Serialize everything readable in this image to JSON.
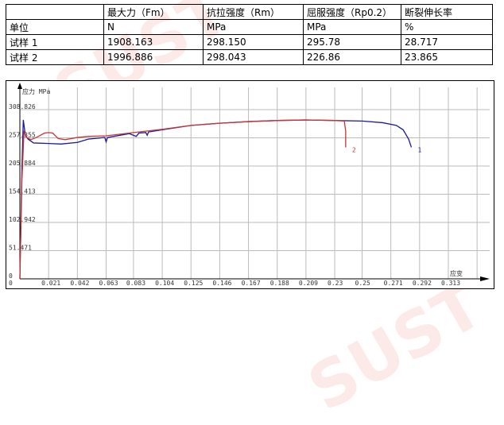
{
  "table": {
    "header": [
      "",
      "最大力（Fm）",
      "抗拉强度（Rm）",
      "屈服强度（Rp0.2）",
      "断裂伸长率"
    ],
    "rows": [
      [
        "单位",
        "N",
        "MPa",
        "MPa",
        "%"
      ],
      [
        "试样 1",
        "1908.163",
        "298.150",
        "295.78",
        "28.717"
      ],
      [
        "试样 2",
        "1996.886",
        "298.043",
        "226.86",
        "23.865"
      ]
    ]
  },
  "watermark": "SUST",
  "chart_data": {
    "type": "line",
    "ylabel": "应力 MPa",
    "xlabel": "应变",
    "ylim": [
      0,
      308.826
    ],
    "xlim": [
      0,
      0.33
    ],
    "grid": true,
    "y_ticks": [
      "0",
      "51.471",
      "102.942",
      "154.413",
      "205.884",
      "257.355",
      "308.826"
    ],
    "x_ticks": [
      "0",
      "0.021",
      "0.042",
      "0.063",
      "0.083",
      "0.104",
      "0.125",
      "0.146",
      "0.167",
      "0.188",
      "0.209",
      "0.23",
      "0.25",
      "0.271",
      "0.292",
      "0.313"
    ],
    "series": [
      {
        "name": "1",
        "color": "#1a1a9a",
        "points": [
          [
            0,
            0
          ],
          [
            0.0015,
            200
          ],
          [
            0.0025,
            290
          ],
          [
            0.004,
            262
          ],
          [
            0.006,
            255
          ],
          [
            0.01,
            248
          ],
          [
            0.021,
            247
          ],
          [
            0.03,
            246
          ],
          [
            0.042,
            249
          ],
          [
            0.05,
            255
          ],
          [
            0.062,
            258
          ],
          [
            0.063,
            250
          ],
          [
            0.064,
            258
          ],
          [
            0.08,
            265
          ],
          [
            0.085,
            260
          ],
          [
            0.087,
            266
          ],
          [
            0.092,
            267
          ],
          [
            0.093,
            262
          ],
          [
            0.094,
            268
          ],
          [
            0.104,
            272
          ],
          [
            0.125,
            280
          ],
          [
            0.146,
            284
          ],
          [
            0.167,
            287
          ],
          [
            0.188,
            289
          ],
          [
            0.209,
            290
          ],
          [
            0.23,
            289
          ],
          [
            0.25,
            288
          ],
          [
            0.265,
            285
          ],
          [
            0.275,
            280
          ],
          [
            0.28,
            272
          ],
          [
            0.284,
            255
          ],
          [
            0.286,
            240
          ]
        ]
      },
      {
        "name": "2",
        "color": "#cc3333",
        "points": [
          [
            0,
            0
          ],
          [
            0.0015,
            180
          ],
          [
            0.003,
            268
          ],
          [
            0.005,
            258
          ],
          [
            0.008,
            254
          ],
          [
            0.012,
            258
          ],
          [
            0.018,
            266
          ],
          [
            0.021,
            267
          ],
          [
            0.024,
            266
          ],
          [
            0.028,
            256
          ],
          [
            0.033,
            254
          ],
          [
            0.042,
            258
          ],
          [
            0.05,
            260
          ],
          [
            0.063,
            261
          ],
          [
            0.083,
            267
          ],
          [
            0.104,
            273
          ],
          [
            0.125,
            280
          ],
          [
            0.146,
            284
          ],
          [
            0.167,
            287
          ],
          [
            0.188,
            289
          ],
          [
            0.209,
            290
          ],
          [
            0.23,
            289
          ],
          [
            0.237,
            288
          ],
          [
            0.238,
            270
          ],
          [
            0.238,
            240
          ]
        ]
      }
    ]
  }
}
